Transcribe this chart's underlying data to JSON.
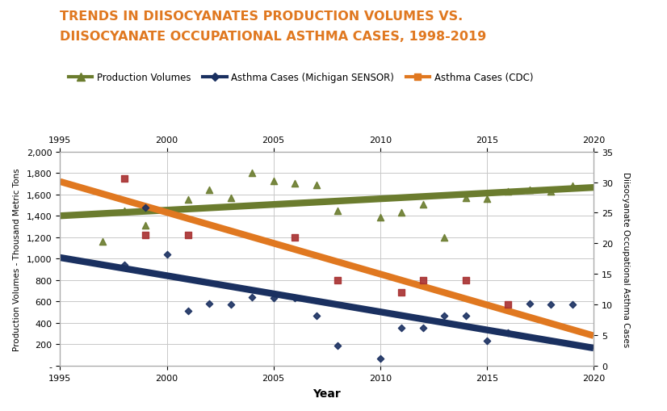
{
  "title_line1": "TRENDS IN DIISOCYANATES PRODUCTION VOLUMES VS.",
  "title_line2": "DIISOCYANATE OCCUPATIONAL ASTHMA CASES, 1998-2019",
  "title_color": "#E07820",
  "xlabel": "Year",
  "ylabel_left": "Production Volumes - Thousand Metric Tons",
  "ylabel_right": "Diisocyanate Occupational Asthma Cases",
  "background_color": "#FFFFFF",
  "xlim": [
    1995,
    2020
  ],
  "ylim_left": [
    0,
    2000
  ],
  "ylim_right": [
    0,
    35
  ],
  "yticks_left": [
    0,
    200,
    400,
    600,
    800,
    1000,
    1200,
    1400,
    1600,
    1800,
    2000
  ],
  "ytick_labels_left": [
    "-",
    "200",
    "400",
    "600",
    "800",
    "1,000",
    "1,200",
    "1,400",
    "1,600",
    "1,800",
    "2,000"
  ],
  "yticks_right": [
    0,
    5,
    10,
    15,
    20,
    25,
    30,
    35
  ],
  "xticks": [
    1995,
    2000,
    2005,
    2010,
    2015,
    2020
  ],
  "prod_scatter_x": [
    1997,
    1998,
    1999,
    2001,
    2002,
    2003,
    2004,
    2005,
    2006,
    2007,
    2008,
    2010,
    2011,
    2012,
    2013,
    2014,
    2015,
    2016,
    2017,
    2018,
    2019
  ],
  "prod_scatter_y": [
    1160,
    1450,
    1310,
    1550,
    1640,
    1570,
    1800,
    1730,
    1700,
    1690,
    1450,
    1390,
    1430,
    1510,
    1200,
    1570,
    1560,
    1630,
    1640,
    1630,
    1680
  ],
  "michigan_scatter_x": [
    1998,
    1999,
    2000,
    2001,
    2002,
    2003,
    2004,
    2005,
    2006,
    2007,
    2008,
    2010,
    2011,
    2012,
    2013,
    2014,
    2015,
    2016,
    2017,
    2018,
    2019
  ],
  "michigan_scatter_y": [
    940,
    1480,
    1040,
    515,
    580,
    575,
    640,
    635,
    630,
    465,
    185,
    70,
    350,
    350,
    465,
    470,
    230,
    305,
    580,
    575,
    570
  ],
  "cdc_scatter_x": [
    1998,
    1999,
    2001,
    2006,
    2008,
    2011,
    2012,
    2014,
    2016
  ],
  "cdc_scatter_y": [
    1750,
    1220,
    1220,
    1200,
    800,
    685,
    800,
    800,
    570
  ],
  "prod_line_x": [
    1995,
    2020
  ],
  "prod_line_y": [
    1400,
    1665
  ],
  "michigan_line_x": [
    1995,
    2020
  ],
  "michigan_line_y": [
    1010,
    165
  ],
  "cdc_line_x": [
    1995,
    2020
  ],
  "cdc_line_y": [
    1720,
    280
  ],
  "prod_color": "#6B7C2E",
  "michigan_color": "#1A3060",
  "cdc_color": "#E07820",
  "cdc_scatter_color": "#A83030",
  "legend_labels": [
    "Production Volumes",
    "Asthma Cases (Michigan SENSOR)",
    "Asthma Cases (CDC)"
  ],
  "legend_colors": [
    "#6B7C2E",
    "#1A3060",
    "#E07820"
  ],
  "line_width": 6
}
